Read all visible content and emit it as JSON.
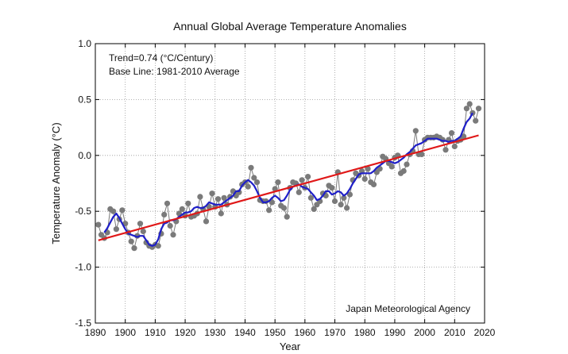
{
  "chart_data": {
    "type": "line",
    "title": "Annual Global Average Temperature Anomalies",
    "xlabel": "Year",
    "ylabel": "Temperature Anomaly (°C)",
    "xlim": [
      1890,
      2020
    ],
    "ylim": [
      -1.5,
      1.0
    ],
    "xticks": [
      1890,
      1900,
      1910,
      1920,
      1930,
      1940,
      1950,
      1960,
      1970,
      1980,
      1990,
      2000,
      2010,
      2020
    ],
    "yticks": [
      "1.0",
      "0.5",
      "0.0",
      "-0.5",
      "-1.0",
      "-1.5"
    ],
    "grid": true,
    "annotations": {
      "trend": "Trend=0.74 (°C/Century)",
      "baseline": "Base Line: 1981-2010 Average",
      "source": "Japan Meteorological Agency"
    },
    "colors": {
      "annual": "#7a7a7a",
      "smoothed": "#1f1fc8",
      "trend": "#e01818"
    },
    "series": [
      {
        "id": "annual",
        "style": "line-markers",
        "x": [
          1891,
          1892,
          1893,
          1894,
          1895,
          1896,
          1897,
          1898,
          1899,
          1900,
          1901,
          1902,
          1903,
          1904,
          1905,
          1906,
          1907,
          1908,
          1909,
          1910,
          1911,
          1912,
          1913,
          1914,
          1915,
          1916,
          1917,
          1918,
          1919,
          1920,
          1921,
          1922,
          1923,
          1924,
          1925,
          1926,
          1927,
          1928,
          1929,
          1930,
          1931,
          1932,
          1933,
          1934,
          1935,
          1936,
          1937,
          1938,
          1939,
          1940,
          1941,
          1942,
          1943,
          1944,
          1945,
          1946,
          1947,
          1948,
          1949,
          1950,
          1951,
          1952,
          1953,
          1954,
          1955,
          1956,
          1957,
          1958,
          1959,
          1960,
          1961,
          1962,
          1963,
          1964,
          1965,
          1966,
          1967,
          1968,
          1969,
          1970,
          1971,
          1972,
          1973,
          1974,
          1975,
          1976,
          1977,
          1978,
          1979,
          1980,
          1981,
          1982,
          1983,
          1984,
          1985,
          1986,
          1987,
          1988,
          1989,
          1990,
          1991,
          1992,
          1993,
          1994,
          1995,
          1996,
          1997,
          1998,
          1999,
          2000,
          2001,
          2002,
          2003,
          2004,
          2005,
          2006,
          2007,
          2008,
          2009,
          2010,
          2011,
          2012,
          2013,
          2014,
          2015,
          2016,
          2017,
          2018
        ],
        "values": [
          -0.62,
          -0.71,
          -0.74,
          -0.69,
          -0.48,
          -0.5,
          -0.66,
          -0.57,
          -0.49,
          -0.61,
          -0.69,
          -0.77,
          -0.83,
          -0.72,
          -0.61,
          -0.68,
          -0.78,
          -0.81,
          -0.82,
          -0.8,
          -0.81,
          -0.7,
          -0.53,
          -0.43,
          -0.63,
          -0.71,
          -0.59,
          -0.52,
          -0.48,
          -0.54,
          -0.43,
          -0.55,
          -0.54,
          -0.52,
          -0.37,
          -0.48,
          -0.59,
          -0.46,
          -0.34,
          -0.46,
          -0.39,
          -0.52,
          -0.38,
          -0.44,
          -0.37,
          -0.32,
          -0.36,
          -0.33,
          -0.26,
          -0.24,
          -0.28,
          -0.11,
          -0.2,
          -0.24,
          -0.4,
          -0.41,
          -0.41,
          -0.49,
          -0.42,
          -0.3,
          -0.24,
          -0.45,
          -0.47,
          -0.55,
          -0.29,
          -0.24,
          -0.25,
          -0.33,
          -0.22,
          -0.29,
          -0.19,
          -0.38,
          -0.48,
          -0.44,
          -0.41,
          -0.34,
          -0.36,
          -0.27,
          -0.29,
          -0.41,
          -0.15,
          -0.44,
          -0.38,
          -0.47,
          -0.35,
          -0.22,
          -0.16,
          -0.18,
          -0.14,
          -0.21,
          -0.12,
          -0.24,
          -0.26,
          -0.15,
          -0.12,
          -0.01,
          -0.03,
          -0.07,
          -0.1,
          -0.02,
          0.0,
          -0.16,
          -0.14,
          -0.08,
          0.01,
          0.04,
          0.22,
          0.01,
          0.01,
          0.14,
          0.16,
          0.16,
          0.16,
          0.17,
          0.16,
          0.14,
          0.05,
          0.14,
          0.2,
          0.08,
          0.13,
          0.14,
          0.17,
          0.42,
          0.46,
          0.38,
          0.31,
          0.42
        ]
      },
      {
        "id": "smoothed",
        "style": "line",
        "x": [
          1893,
          1894,
          1895,
          1896,
          1897,
          1898,
          1899,
          1900,
          1901,
          1902,
          1903,
          1904,
          1905,
          1906,
          1907,
          1908,
          1909,
          1910,
          1911,
          1912,
          1913,
          1914,
          1915,
          1916,
          1917,
          1918,
          1919,
          1920,
          1921,
          1922,
          1923,
          1924,
          1925,
          1926,
          1927,
          1928,
          1929,
          1930,
          1931,
          1932,
          1933,
          1934,
          1935,
          1936,
          1937,
          1938,
          1939,
          1940,
          1941,
          1942,
          1943,
          1944,
          1945,
          1946,
          1947,
          1948,
          1949,
          1950,
          1951,
          1952,
          1953,
          1954,
          1955,
          1956,
          1957,
          1958,
          1959,
          1960,
          1961,
          1962,
          1963,
          1964,
          1965,
          1966,
          1967,
          1968,
          1969,
          1970,
          1971,
          1972,
          1973,
          1974,
          1975,
          1976,
          1977,
          1978,
          1979,
          1980,
          1981,
          1982,
          1983,
          1984,
          1985,
          1986,
          1987,
          1988,
          1989,
          1990,
          1991,
          1992,
          1993,
          1994,
          1995,
          1996,
          1997,
          1998,
          1999,
          2000,
          2001,
          2002,
          2003,
          2004,
          2005,
          2006,
          2007,
          2008,
          2009,
          2010,
          2011,
          2012,
          2013,
          2014,
          2015,
          2016
        ],
        "values": [
          -0.69,
          -0.65,
          -0.6,
          -0.55,
          -0.52,
          -0.56,
          -0.61,
          -0.66,
          -0.7,
          -0.71,
          -0.72,
          -0.73,
          -0.72,
          -0.72,
          -0.76,
          -0.8,
          -0.81,
          -0.8,
          -0.75,
          -0.66,
          -0.61,
          -0.6,
          -0.58,
          -0.58,
          -0.57,
          -0.55,
          -0.53,
          -0.51,
          -0.51,
          -0.5,
          -0.47,
          -0.46,
          -0.47,
          -0.47,
          -0.45,
          -0.42,
          -0.43,
          -0.44,
          -0.44,
          -0.44,
          -0.42,
          -0.4,
          -0.38,
          -0.36,
          -0.32,
          -0.32,
          -0.27,
          -0.24,
          -0.22,
          -0.24,
          -0.27,
          -0.32,
          -0.38,
          -0.42,
          -0.42,
          -0.41,
          -0.38,
          -0.36,
          -0.38,
          -0.41,
          -0.4,
          -0.36,
          -0.31,
          -0.28,
          -0.27,
          -0.26,
          -0.28,
          -0.29,
          -0.3,
          -0.33,
          -0.36,
          -0.4,
          -0.39,
          -0.36,
          -0.32,
          -0.32,
          -0.35,
          -0.34,
          -0.32,
          -0.33,
          -0.36,
          -0.34,
          -0.3,
          -0.25,
          -0.21,
          -0.17,
          -0.16,
          -0.16,
          -0.16,
          -0.16,
          -0.14,
          -0.11,
          -0.09,
          -0.07,
          -0.05,
          -0.05,
          -0.06,
          -0.07,
          -0.06,
          -0.04,
          -0.02,
          0.01,
          0.03,
          0.06,
          0.09,
          0.1,
          0.11,
          0.13,
          0.15,
          0.15,
          0.15,
          0.15,
          0.14,
          0.13,
          0.13,
          0.12,
          0.13,
          0.13,
          0.15,
          0.17,
          0.24,
          0.3,
          0.33,
          0.38
        ]
      },
      {
        "id": "trend",
        "style": "line",
        "x": [
          1891,
          2018
        ],
        "values": [
          -0.76,
          0.18
        ]
      }
    ]
  }
}
